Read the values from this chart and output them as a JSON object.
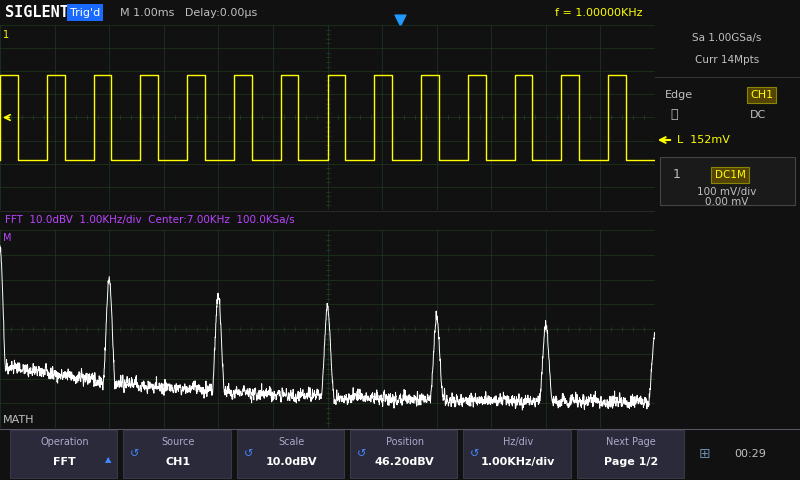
{
  "bg_color": "#111111",
  "screen_bg": "#000000",
  "grid_color": "#1e3a1e",
  "header_bg": "#1a1a1a",
  "header_text_color": "#c0c0c0",
  "footer_bg": "#222233",
  "footer_text_color": "#c0c0c0",
  "siglent_color": "#ffffff",
  "trig_bg": "#1a6aff",
  "freq_color": "#ffff00",
  "fft_label_color": "#bb44ff",
  "ch1_color": "#ffff00",
  "fft_color": "#ffffff",
  "title_top": "SIGLENT",
  "trig_label": "Trig'd",
  "top_info": "M 1.00ms   Delay:0.00μs",
  "freq_info": "f = 1.00000KHz",
  "sa_info": "Sa 1.00GSa/s",
  "curr_info": "Curr 14Mpts",
  "edge_label": "Edge",
  "ch1_label": "CH1",
  "dc_label": "DC",
  "level_label": "L  152mV",
  "ch1_num": "1",
  "dc1m_label": "DC1M",
  "mv_div": "100 mV/div",
  "mv_offset": "0.00 mV",
  "fft_info": "FFT  10.0dBV  1.00KHz/div  Center:7.00KHz  100.0KSa/s",
  "math_label": "MATH",
  "footer_items": [
    "Operation\nFFT",
    "Source\nCH1",
    "Scale\n10.0dBV",
    "Position\n46.20dBV",
    "Hz/div\n1.00KHz/div",
    "Next Page\nPage 1/2"
  ],
  "time_label": "00:29",
  "num_cycles": 14
}
